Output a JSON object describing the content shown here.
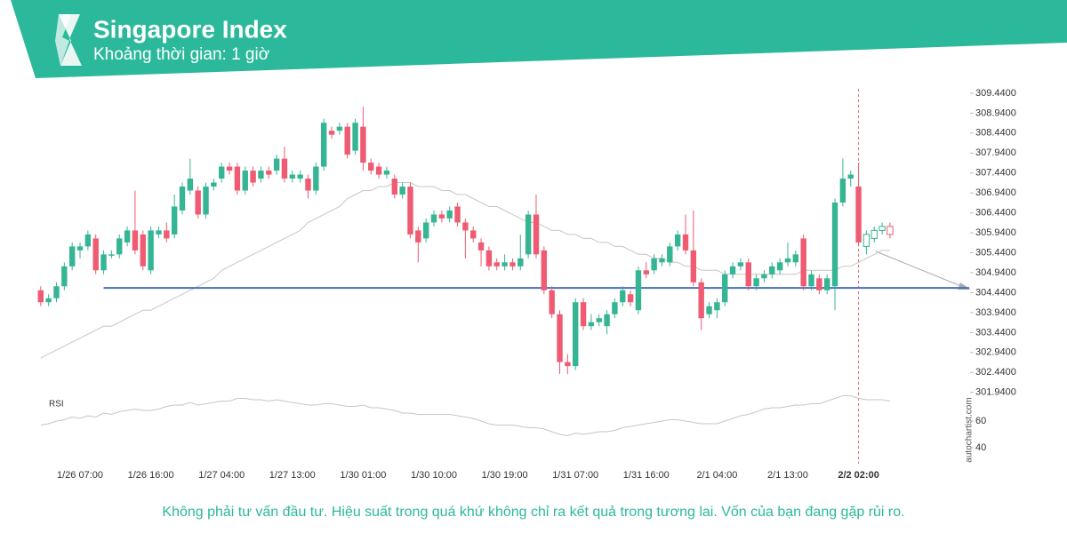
{
  "chart_data": {
    "type": "candlestick",
    "title": "Singapore Index",
    "subtitle": "Khoảng thời gian: 1 giờ",
    "disclaimer": "Không phải tư vấn đầu tư. Hiệu suất trong quá khứ không chỉ ra kết quả trong tương lai. Vốn của bạn đang gặp rủi ro.",
    "watermark": "autochartist.com",
    "rsi_label": "RSI",
    "categories": [
      null,
      null,
      null,
      null,
      null,
      "1/26 07:00",
      null,
      null,
      null,
      null,
      null,
      null,
      null,
      null,
      "1/26 16:00",
      null,
      null,
      null,
      null,
      null,
      null,
      null,
      null,
      "1/27 04:00",
      null,
      null,
      null,
      null,
      null,
      null,
      null,
      null,
      "1/27 13:00",
      null,
      null,
      null,
      null,
      null,
      null,
      null,
      null,
      "1/30 01:00",
      null,
      null,
      null,
      null,
      null,
      null,
      null,
      null,
      "1/30 10:00",
      null,
      null,
      null,
      null,
      null,
      null,
      null,
      null,
      "1/30 19:00",
      null,
      null,
      null,
      null,
      null,
      null,
      null,
      null,
      "1/31 07:00",
      null,
      null,
      null,
      null,
      null,
      null,
      null,
      null,
      "1/31 16:00",
      null,
      null,
      null,
      null,
      null,
      null,
      null,
      null,
      "2/1 04:00",
      null,
      null,
      null,
      null,
      null,
      null,
      null,
      null,
      "2/1 13:00",
      null,
      null,
      null,
      null,
      null,
      null,
      null,
      null,
      "2/2 02:00",
      null,
      null,
      null,
      null
    ],
    "open": [
      304.5,
      304.2,
      304.3,
      304.6,
      305.1,
      305.5,
      305.6,
      305.8,
      305.0,
      305.4,
      305.4,
      305.7,
      306.0,
      305.9,
      305.0,
      305.9,
      306.0,
      305.9,
      306.5,
      307.0,
      307.0,
      306.4,
      307.1,
      307.3,
      307.6,
      307.6,
      307.0,
      307.5,
      307.3,
      307.5,
      307.5,
      307.8,
      307.3,
      307.3,
      307.3,
      307.0,
      307.6,
      308.5,
      308.5,
      308.6,
      308.0,
      308.6,
      307.7,
      307.6,
      307.4,
      307.3,
      306.9,
      307.1,
      306.0,
      305.8,
      306.2,
      306.4,
      306.3,
      306.6,
      306.2,
      306.0,
      305.7,
      305.5,
      305.2,
      305.1,
      305.2,
      305.1,
      305.4,
      306.4,
      305.5,
      304.5,
      303.9,
      302.7,
      302.6,
      304.2,
      303.6,
      303.7,
      303.6,
      303.9,
      304.2,
      304.4,
      304.0,
      305.0,
      305.0,
      305.2,
      305.2,
      305.6,
      305.9,
      305.5,
      304.7,
      303.9,
      304.0,
      304.2,
      304.9,
      305.1,
      305.2,
      304.6,
      304.8,
      304.9,
      305.0,
      305.2,
      305.2,
      305.8,
      304.6,
      304.8,
      304.5,
      304.6,
      306.7,
      307.3,
      307.1,
      305.6,
      305.8,
      306.0,
      306.1
    ],
    "high": [
      304.6,
      304.4,
      304.7,
      305.2,
      305.7,
      305.7,
      306.0,
      305.9,
      305.5,
      305.5,
      305.9,
      306.1,
      307.0,
      306.0,
      306.1,
      306.1,
      306.2,
      306.9,
      307.2,
      307.8,
      307.1,
      307.2,
      307.3,
      307.7,
      307.7,
      307.7,
      307.6,
      307.6,
      307.6,
      307.6,
      307.9,
      308.1,
      307.5,
      307.5,
      307.4,
      307.7,
      308.8,
      308.6,
      308.7,
      308.7,
      308.8,
      309.1,
      307.8,
      307.7,
      307.6,
      307.4,
      307.2,
      307.2,
      306.1,
      306.3,
      306.5,
      306.5,
      306.6,
      306.7,
      306.3,
      306.1,
      305.8,
      305.6,
      305.3,
      305.4,
      305.3,
      305.9,
      306.5,
      306.9,
      305.6,
      304.6,
      304.0,
      302.9,
      304.3,
      304.3,
      303.9,
      303.9,
      304.0,
      304.3,
      304.6,
      304.5,
      305.1,
      305.2,
      305.4,
      305.4,
      305.7,
      306.0,
      306.4,
      306.5,
      304.8,
      304.2,
      304.3,
      305.0,
      305.2,
      305.3,
      305.3,
      304.9,
      305.0,
      305.2,
      305.3,
      305.7,
      305.5,
      305.9,
      305.0,
      304.9,
      304.9,
      306.8,
      307.8,
      307.5,
      307.7,
      306.0,
      306.1,
      306.2,
      306.2
    ],
    "low": [
      304.1,
      304.1,
      304.2,
      304.5,
      305.0,
      305.3,
      305.5,
      304.9,
      304.9,
      305.3,
      305.3,
      305.6,
      305.4,
      305.0,
      304.9,
      305.8,
      305.7,
      305.8,
      306.4,
      306.9,
      306.3,
      306.3,
      307.0,
      307.2,
      307.4,
      306.9,
      306.9,
      307.1,
      307.2,
      307.3,
      307.4,
      307.2,
      307.2,
      307.2,
      306.8,
      306.9,
      307.5,
      308.3,
      308.4,
      307.8,
      307.9,
      307.5,
      307.4,
      307.3,
      307.3,
      306.8,
      306.8,
      305.8,
      305.2,
      305.7,
      306.1,
      306.2,
      306.2,
      306.1,
      305.3,
      305.7,
      305.1,
      305.0,
      305.0,
      305.0,
      305.0,
      305.0,
      305.3,
      305.3,
      304.4,
      303.8,
      302.4,
      302.4,
      302.5,
      303.5,
      303.5,
      303.6,
      303.4,
      303.8,
      304.1,
      304.1,
      303.9,
      304.8,
      304.9,
      305.1,
      305.1,
      305.5,
      305.4,
      304.6,
      303.5,
      303.8,
      303.8,
      304.1,
      304.8,
      305.0,
      304.5,
      304.5,
      304.7,
      304.8,
      304.9,
      305.1,
      305.1,
      304.5,
      304.5,
      304.4,
      304.4,
      304.0,
      306.6,
      307.1,
      305.6,
      305.4,
      305.7,
      305.9,
      305.8
    ],
    "close": [
      304.2,
      304.3,
      304.6,
      305.1,
      305.6,
      305.6,
      305.9,
      305.0,
      305.4,
      305.4,
      305.8,
      306.0,
      305.5,
      305.1,
      306.0,
      306.0,
      305.8,
      306.6,
      307.1,
      307.3,
      306.4,
      307.1,
      307.2,
      307.6,
      307.5,
      307.0,
      307.5,
      307.2,
      307.5,
      307.4,
      307.8,
      307.3,
      307.4,
      307.4,
      307.0,
      307.6,
      308.7,
      308.4,
      308.6,
      307.9,
      308.7,
      307.7,
      307.5,
      307.4,
      307.5,
      306.9,
      307.1,
      305.9,
      305.7,
      306.2,
      306.4,
      306.3,
      306.5,
      306.2,
      306.0,
      305.8,
      305.5,
      305.1,
      305.1,
      305.2,
      305.1,
      305.3,
      306.4,
      305.4,
      304.5,
      303.9,
      302.7,
      302.6,
      304.2,
      303.6,
      303.7,
      303.8,
      303.9,
      304.2,
      304.5,
      304.2,
      305.0,
      304.9,
      305.3,
      305.3,
      305.6,
      305.9,
      305.5,
      304.7,
      303.8,
      304.1,
      304.2,
      304.9,
      305.1,
      305.2,
      304.6,
      304.8,
      304.9,
      305.1,
      305.2,
      305.3,
      305.4,
      304.6,
      304.9,
      304.5,
      304.8,
      306.7,
      307.3,
      307.4,
      305.7,
      305.9,
      306.0,
      306.1,
      305.9
    ],
    "projected_from": 105,
    "up_color": "#35b593",
    "down_color": "#ee5b72",
    "average": [
      302.8,
      302.9,
      303.0,
      303.1,
      303.2,
      303.3,
      303.4,
      303.5,
      303.6,
      303.6,
      303.7,
      303.8,
      303.9,
      304.0,
      304.0,
      304.1,
      304.2,
      304.3,
      304.4,
      304.5,
      304.6,
      304.7,
      304.8,
      305.0,
      305.1,
      305.2,
      305.3,
      305.4,
      305.5,
      305.6,
      305.7,
      305.8,
      305.9,
      306.0,
      306.2,
      306.3,
      306.4,
      306.5,
      306.6,
      306.8,
      306.9,
      307.0,
      307.0,
      307.1,
      307.1,
      307.2,
      307.2,
      307.2,
      307.1,
      307.1,
      307.1,
      307.0,
      307.0,
      306.9,
      306.9,
      306.8,
      306.7,
      306.6,
      306.6,
      306.5,
      306.4,
      306.3,
      306.2,
      306.2,
      306.1,
      306.0,
      306.0,
      305.9,
      305.9,
      305.8,
      305.8,
      305.7,
      305.7,
      305.6,
      305.6,
      305.5,
      305.4,
      305.4,
      305.3,
      305.3,
      305.2,
      305.2,
      305.1,
      305.1,
      305.0,
      305.0,
      305.0,
      304.9,
      304.9,
      304.9,
      304.9,
      304.9,
      304.9,
      304.9,
      304.9,
      304.9,
      304.9,
      305.0,
      305.0,
      305.0,
      305.0,
      305.0,
      305.1,
      305.1,
      305.2,
      305.3,
      305.4,
      305.5,
      305.5
    ],
    "average_color": "#c6c6c6",
    "support_level": 304.56,
    "support_start": 8,
    "support_color": "#4a6fc0",
    "ylim": [
      301.8,
      309.55
    ],
    "yticks": [
      {
        "value": 309.44,
        "label": "309.4400"
      },
      {
        "value": 308.94,
        "label": "308.9400"
      },
      {
        "value": 308.44,
        "label": "308.4400"
      },
      {
        "value": 307.94,
        "label": "307.9400"
      },
      {
        "value": 307.44,
        "label": "307.4400"
      },
      {
        "value": 306.94,
        "label": "306.9400"
      },
      {
        "value": 306.44,
        "label": "306.4400"
      },
      {
        "value": 305.94,
        "label": "305.9400"
      },
      {
        "value": 305.44,
        "label": "305.4400"
      },
      {
        "value": 304.94,
        "label": "304.9400"
      },
      {
        "value": 304.44,
        "label": "304.4400"
      },
      {
        "value": 303.94,
        "label": "303.9400"
      },
      {
        "value": 303.44,
        "label": "303.4400"
      },
      {
        "value": 302.94,
        "label": "302.9400"
      },
      {
        "value": 302.44,
        "label": "302.4400"
      },
      {
        "value": 301.94,
        "label": "301.9400"
      }
    ],
    "rsi": [
      57,
      58,
      60,
      61,
      63,
      62,
      64,
      63,
      66,
      65,
      67,
      68,
      69,
      68,
      68,
      69,
      71,
      72,
      72,
      74,
      72,
      73,
      74,
      75,
      75,
      77,
      77,
      76,
      76,
      75,
      76,
      75,
      74,
      73,
      72,
      72,
      73,
      73,
      72,
      71,
      71,
      72,
      70,
      70,
      69,
      68,
      66,
      66,
      65,
      65,
      65,
      65,
      65,
      64,
      63,
      62,
      60,
      58,
      57,
      57,
      57,
      56,
      55,
      55,
      54,
      52,
      50,
      49,
      51,
      50,
      51,
      52,
      52,
      53,
      55,
      56,
      57,
      58,
      59,
      60,
      61,
      61,
      60,
      59,
      58,
      58,
      58,
      60,
      62,
      64,
      65,
      67,
      69,
      70,
      70,
      71,
      72,
      72,
      73,
      73,
      75,
      77,
      79,
      79,
      77,
      76,
      76,
      76,
      75
    ],
    "rsi_ylim": [
      30,
      80
    ],
    "rsi_yticks": [
      60,
      40
    ],
    "rsi_color": "#c6c6c6"
  }
}
